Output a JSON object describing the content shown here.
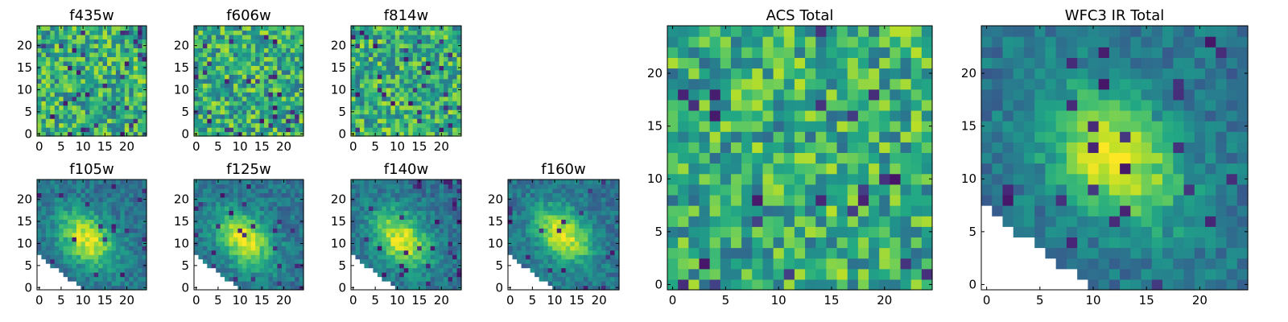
{
  "colormap": "viridis",
  "chart_data": [
    {
      "type": "heatmap",
      "title": "f435w",
      "grid_size": 25,
      "pattern": "noise",
      "x_ticks": [
        0,
        5,
        10,
        15,
        20
      ],
      "y_ticks": [
        0,
        5,
        10,
        15,
        20
      ],
      "xlim": [
        0,
        25
      ],
      "ylim": [
        0,
        25
      ]
    },
    {
      "type": "heatmap",
      "title": "f606w",
      "grid_size": 25,
      "pattern": "noise",
      "x_ticks": [
        0,
        5,
        10,
        15,
        20
      ],
      "y_ticks": [
        0,
        5,
        10,
        15,
        20
      ],
      "xlim": [
        0,
        25
      ],
      "ylim": [
        0,
        25
      ]
    },
    {
      "type": "heatmap",
      "title": "f814w",
      "grid_size": 25,
      "pattern": "noise",
      "x_ticks": [
        0,
        5,
        10,
        15,
        20
      ],
      "y_ticks": [
        0,
        5,
        10,
        15,
        20
      ],
      "xlim": [
        0,
        25
      ],
      "ylim": [
        0,
        25
      ]
    },
    {
      "type": "heatmap",
      "title": "f105w",
      "grid_size": 25,
      "pattern": "source",
      "source_center": [
        11,
        11
      ],
      "x_ticks": [
        0,
        5,
        10,
        15,
        20
      ],
      "y_ticks": [
        0,
        5,
        10,
        15,
        20
      ],
      "xlim": [
        0,
        25
      ],
      "ylim": [
        0,
        25
      ]
    },
    {
      "type": "heatmap",
      "title": "f125w",
      "grid_size": 25,
      "pattern": "source",
      "source_center": [
        11,
        11
      ],
      "x_ticks": [
        0,
        5,
        10,
        15,
        20
      ],
      "y_ticks": [
        0,
        5,
        10,
        15,
        20
      ],
      "xlim": [
        0,
        25
      ],
      "ylim": [
        0,
        25
      ]
    },
    {
      "type": "heatmap",
      "title": "f140w",
      "grid_size": 25,
      "pattern": "source",
      "source_center": [
        11,
        11
      ],
      "x_ticks": [
        0,
        5,
        10,
        15,
        20
      ],
      "y_ticks": [
        0,
        5,
        10,
        15,
        20
      ],
      "xlim": [
        0,
        25
      ],
      "ylim": [
        0,
        25
      ]
    },
    {
      "type": "heatmap",
      "title": "f160w",
      "grid_size": 25,
      "pattern": "source",
      "source_center": [
        12,
        12
      ],
      "x_ticks": [
        0,
        5,
        10,
        15,
        20
      ],
      "y_ticks": [
        0,
        5,
        10,
        15,
        20
      ],
      "xlim": [
        0,
        25
      ],
      "ylim": [
        0,
        25
      ]
    },
    {
      "type": "heatmap",
      "title": "ACS Total",
      "grid_size": 25,
      "pattern": "noise",
      "x_ticks": [
        0,
        5,
        10,
        15,
        20
      ],
      "y_ticks": [
        0,
        5,
        10,
        15,
        20
      ],
      "xlim": [
        0,
        25
      ],
      "ylim": [
        0,
        25
      ]
    },
    {
      "type": "heatmap",
      "title": "WFC3 IR Total",
      "grid_size": 25,
      "pattern": "source",
      "source_center": [
        12,
        12
      ],
      "x_ticks": [
        0,
        5,
        10,
        15,
        20
      ],
      "y_ticks": [
        0,
        5,
        10,
        15,
        20
      ],
      "xlim": [
        0,
        25
      ],
      "ylim": [
        0,
        25
      ]
    }
  ]
}
